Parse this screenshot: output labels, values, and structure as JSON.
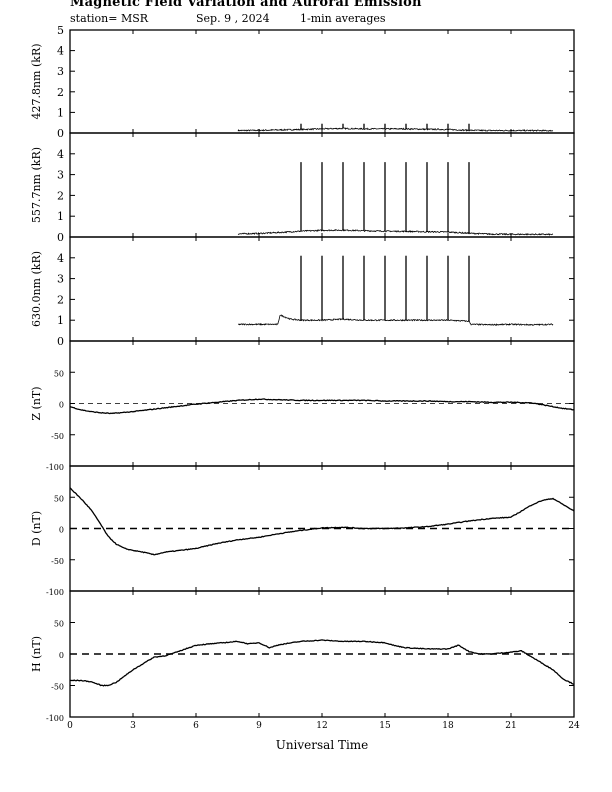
{
  "header": {
    "title": "Magnetic Field Variation and Auroral Emission",
    "station": "station= MSR",
    "date": "Sep. 9  , 2024",
    "averaging": "1-min averages"
  },
  "chart_data": [
    {
      "type": "line",
      "ylabel": "427.8nm (kR)",
      "ylim": [
        0,
        5
      ],
      "yticks": [
        0,
        1,
        2,
        3,
        4,
        5
      ],
      "xlim": [
        0,
        24
      ],
      "series": [
        {
          "x": [
            8.0,
            9.0,
            10.0,
            11.0,
            12.0,
            13.0,
            14.0,
            15.0,
            16.0,
            17.0,
            18.0,
            19.0,
            20.0,
            21.0,
            22.0,
            23.0
          ],
          "values": [
            0.12,
            0.13,
            0.15,
            0.17,
            0.2,
            0.22,
            0.2,
            0.2,
            0.2,
            0.18,
            0.17,
            0.13,
            0.12,
            0.12,
            0.12,
            0.11
          ]
        }
      ],
      "spikes": {
        "x": [
          11,
          12,
          13,
          14,
          15,
          16,
          17,
          18,
          19
        ],
        "peak": 0.45
      }
    },
    {
      "type": "line",
      "ylabel": "557.7nm (kR)",
      "ylim": [
        0,
        5
      ],
      "yticks": [
        0,
        1,
        2,
        3,
        4
      ],
      "xlim": [
        0,
        24
      ],
      "series": [
        {
          "x": [
            8.0,
            9.0,
            10.0,
            11.0,
            12.0,
            13.0,
            14.0,
            15.0,
            16.0,
            17.0,
            18.0,
            19.0,
            20.0,
            21.0,
            22.0,
            23.0
          ],
          "values": [
            0.15,
            0.17,
            0.22,
            0.28,
            0.32,
            0.33,
            0.3,
            0.28,
            0.27,
            0.25,
            0.24,
            0.18,
            0.14,
            0.13,
            0.13,
            0.12
          ]
        }
      ],
      "spikes": {
        "x": [
          11,
          12,
          13,
          14,
          15,
          16,
          17,
          18,
          19
        ],
        "peak": 3.6
      }
    },
    {
      "type": "line",
      "ylabel": "630.0nm (kR)",
      "ylim": [
        0,
        5
      ],
      "yticks": [
        0,
        1,
        2,
        3,
        4
      ],
      "xlim": [
        0,
        24
      ],
      "series": [
        {
          "x": [
            8.0,
            9.0,
            9.9,
            10.0,
            10.5,
            11.0,
            12.0,
            13.0,
            14.0,
            15.0,
            16.0,
            17.0,
            18.0,
            19.0,
            19.1,
            20.0,
            21.0,
            22.0,
            23.0
          ],
          "values": [
            0.8,
            0.8,
            0.8,
            1.25,
            1.05,
            1.0,
            1.0,
            1.05,
            1.0,
            1.0,
            1.0,
            1.0,
            1.0,
            0.95,
            0.8,
            0.78,
            0.8,
            0.78,
            0.8
          ]
        }
      ],
      "spikes": {
        "x": [
          11,
          12,
          13,
          14,
          15,
          16,
          17,
          18,
          19
        ],
        "peak": 4.1
      }
    },
    {
      "type": "line",
      "ylabel": "Z (nT)",
      "ylim": [
        -100,
        100
      ],
      "yticks": [
        -100,
        -50,
        0,
        50
      ],
      "xlim": [
        0,
        24
      ],
      "zero_line": "dashed-thin",
      "series": [
        {
          "x": [
            0,
            0.5,
            1,
            1.5,
            2,
            3,
            4,
            5,
            6,
            7,
            8,
            9,
            10,
            11,
            12,
            13,
            14,
            15,
            16,
            17,
            18,
            19,
            20,
            21,
            22,
            22.5,
            23,
            23.5,
            24
          ],
          "values": [
            -5,
            -10,
            -13,
            -15,
            -16,
            -13,
            -9,
            -5,
            -1,
            2,
            5,
            7,
            6,
            5,
            5,
            5,
            5,
            4,
            4,
            4,
            3,
            3,
            2,
            2,
            1,
            -2,
            -5,
            -8,
            -10
          ]
        }
      ]
    },
    {
      "type": "line",
      "ylabel": "D (nT)",
      "ylim": [
        -100,
        100
      ],
      "yticks": [
        -100,
        -50,
        0,
        50
      ],
      "xlim": [
        0,
        24
      ],
      "zero_line": "dashed-thick",
      "series": [
        {
          "x": [
            0,
            0.3,
            0.6,
            1.0,
            1.4,
            1.8,
            2.2,
            2.6,
            3.0,
            3.5,
            4.0,
            4.5,
            5.0,
            6.0,
            7.0,
            8.0,
            9.0,
            10.0,
            11.0,
            12.0,
            13.0,
            14.0,
            15.0,
            16.0,
            17.0,
            18.0,
            19.0,
            20.0,
            21.0,
            21.5,
            22.0,
            22.5,
            23.0,
            23.5,
            24.0
          ],
          "values": [
            65,
            55,
            45,
            30,
            10,
            -12,
            -25,
            -32,
            -35,
            -38,
            -42,
            -38,
            -36,
            -32,
            -24,
            -18,
            -14,
            -8,
            -3,
            1,
            2,
            0,
            0,
            1,
            3,
            7,
            12,
            16,
            18,
            28,
            38,
            45,
            48,
            38,
            28
          ]
        }
      ]
    },
    {
      "type": "line",
      "ylabel": "H (nT)",
      "ylim": [
        -100,
        100
      ],
      "yticks": [
        -100,
        -50,
        0,
        50
      ],
      "xlim": [
        0,
        24
      ],
      "zero_line": "dashed-thick",
      "series": [
        {
          "x": [
            0,
            0.5,
            1.0,
            1.5,
            1.8,
            2.2,
            2.6,
            3.0,
            3.5,
            4.0,
            4.5,
            5.0,
            5.5,
            6.0,
            7.0,
            8.0,
            8.5,
            9.0,
            9.5,
            10.0,
            11.0,
            12.0,
            13.0,
            14.0,
            15.0,
            15.5,
            16.0,
            17.0,
            18.0,
            18.5,
            19.0,
            19.5,
            20.0,
            21.0,
            21.5,
            22.0,
            22.5,
            23.0,
            23.5,
            24.0
          ],
          "values": [
            -42,
            -42,
            -44,
            -50,
            -50,
            -45,
            -35,
            -25,
            -15,
            -5,
            -3,
            2,
            8,
            14,
            17,
            20,
            16,
            18,
            10,
            15,
            20,
            22,
            20,
            20,
            18,
            13,
            10,
            8,
            8,
            14,
            4,
            0,
            0,
            3,
            5,
            -5,
            -15,
            -25,
            -40,
            -48
          ]
        }
      ]
    }
  ],
  "x_axis": {
    "ticks": [
      0,
      3,
      6,
      9,
      12,
      15,
      18,
      21,
      24
    ],
    "label": "Universal Time"
  }
}
